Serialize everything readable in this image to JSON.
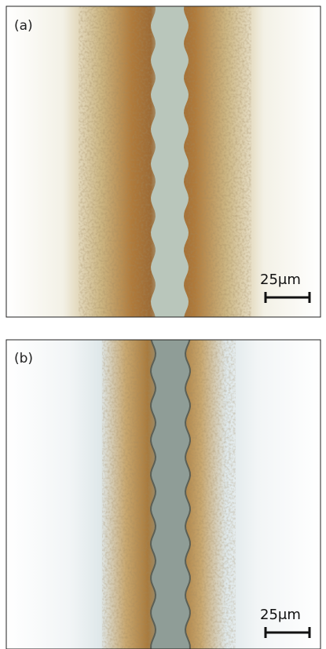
{
  "panels": [
    {
      "label": "(a)",
      "scale_label": "25μm"
    },
    {
      "label": "(b)",
      "scale_label": "25μm"
    }
  ]
}
